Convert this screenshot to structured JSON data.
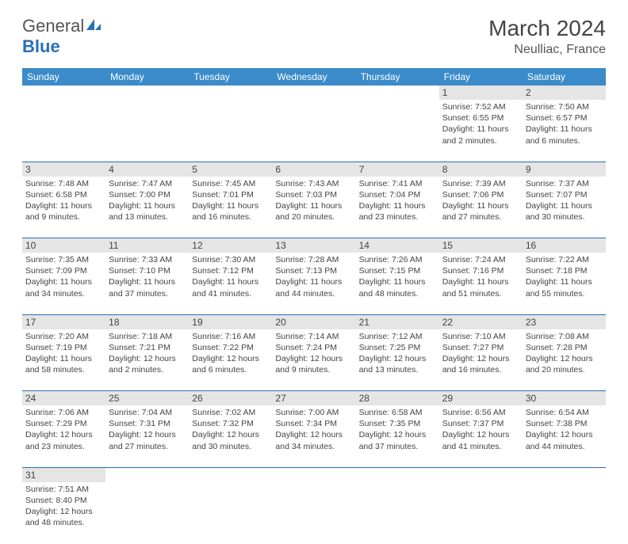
{
  "logo": {
    "part1": "General",
    "part2": "Blue"
  },
  "title": "March 2024",
  "location": "Neulliac, France",
  "weekdays": [
    "Sunday",
    "Monday",
    "Tuesday",
    "Wednesday",
    "Thursday",
    "Friday",
    "Saturday"
  ],
  "colors": {
    "header_bg": "#3b8bca",
    "border": "#2a6fb5",
    "shade": "#e5e5e5"
  },
  "weeks": [
    [
      null,
      null,
      null,
      null,
      null,
      {
        "n": "1",
        "sr": "7:52 AM",
        "ss": "6:55 PM",
        "dh": "11",
        "dm": "2"
      },
      {
        "n": "2",
        "sr": "7:50 AM",
        "ss": "6:57 PM",
        "dh": "11",
        "dm": "6"
      }
    ],
    [
      {
        "n": "3",
        "sr": "7:48 AM",
        "ss": "6:58 PM",
        "dh": "11",
        "dm": "9"
      },
      {
        "n": "4",
        "sr": "7:47 AM",
        "ss": "7:00 PM",
        "dh": "11",
        "dm": "13"
      },
      {
        "n": "5",
        "sr": "7:45 AM",
        "ss": "7:01 PM",
        "dh": "11",
        "dm": "16"
      },
      {
        "n": "6",
        "sr": "7:43 AM",
        "ss": "7:03 PM",
        "dh": "11",
        "dm": "20"
      },
      {
        "n": "7",
        "sr": "7:41 AM",
        "ss": "7:04 PM",
        "dh": "11",
        "dm": "23"
      },
      {
        "n": "8",
        "sr": "7:39 AM",
        "ss": "7:06 PM",
        "dh": "11",
        "dm": "27"
      },
      {
        "n": "9",
        "sr": "7:37 AM",
        "ss": "7:07 PM",
        "dh": "11",
        "dm": "30"
      }
    ],
    [
      {
        "n": "10",
        "sr": "7:35 AM",
        "ss": "7:09 PM",
        "dh": "11",
        "dm": "34"
      },
      {
        "n": "11",
        "sr": "7:33 AM",
        "ss": "7:10 PM",
        "dh": "11",
        "dm": "37"
      },
      {
        "n": "12",
        "sr": "7:30 AM",
        "ss": "7:12 PM",
        "dh": "11",
        "dm": "41"
      },
      {
        "n": "13",
        "sr": "7:28 AM",
        "ss": "7:13 PM",
        "dh": "11",
        "dm": "44"
      },
      {
        "n": "14",
        "sr": "7:26 AM",
        "ss": "7:15 PM",
        "dh": "11",
        "dm": "48"
      },
      {
        "n": "15",
        "sr": "7:24 AM",
        "ss": "7:16 PM",
        "dh": "11",
        "dm": "51"
      },
      {
        "n": "16",
        "sr": "7:22 AM",
        "ss": "7:18 PM",
        "dh": "11",
        "dm": "55"
      }
    ],
    [
      {
        "n": "17",
        "sr": "7:20 AM",
        "ss": "7:19 PM",
        "dh": "11",
        "dm": "58"
      },
      {
        "n": "18",
        "sr": "7:18 AM",
        "ss": "7:21 PM",
        "dh": "12",
        "dm": "2"
      },
      {
        "n": "19",
        "sr": "7:16 AM",
        "ss": "7:22 PM",
        "dh": "12",
        "dm": "6"
      },
      {
        "n": "20",
        "sr": "7:14 AM",
        "ss": "7:24 PM",
        "dh": "12",
        "dm": "9"
      },
      {
        "n": "21",
        "sr": "7:12 AM",
        "ss": "7:25 PM",
        "dh": "12",
        "dm": "13"
      },
      {
        "n": "22",
        "sr": "7:10 AM",
        "ss": "7:27 PM",
        "dh": "12",
        "dm": "16"
      },
      {
        "n": "23",
        "sr": "7:08 AM",
        "ss": "7:28 PM",
        "dh": "12",
        "dm": "20"
      }
    ],
    [
      {
        "n": "24",
        "sr": "7:06 AM",
        "ss": "7:29 PM",
        "dh": "12",
        "dm": "23"
      },
      {
        "n": "25",
        "sr": "7:04 AM",
        "ss": "7:31 PM",
        "dh": "12",
        "dm": "27"
      },
      {
        "n": "26",
        "sr": "7:02 AM",
        "ss": "7:32 PM",
        "dh": "12",
        "dm": "30"
      },
      {
        "n": "27",
        "sr": "7:00 AM",
        "ss": "7:34 PM",
        "dh": "12",
        "dm": "34"
      },
      {
        "n": "28",
        "sr": "6:58 AM",
        "ss": "7:35 PM",
        "dh": "12",
        "dm": "37"
      },
      {
        "n": "29",
        "sr": "6:56 AM",
        "ss": "7:37 PM",
        "dh": "12",
        "dm": "41"
      },
      {
        "n": "30",
        "sr": "6:54 AM",
        "ss": "7:38 PM",
        "dh": "12",
        "dm": "44"
      }
    ],
    [
      {
        "n": "31",
        "sr": "7:51 AM",
        "ss": "8:40 PM",
        "dh": "12",
        "dm": "48"
      },
      null,
      null,
      null,
      null,
      null,
      null
    ]
  ]
}
